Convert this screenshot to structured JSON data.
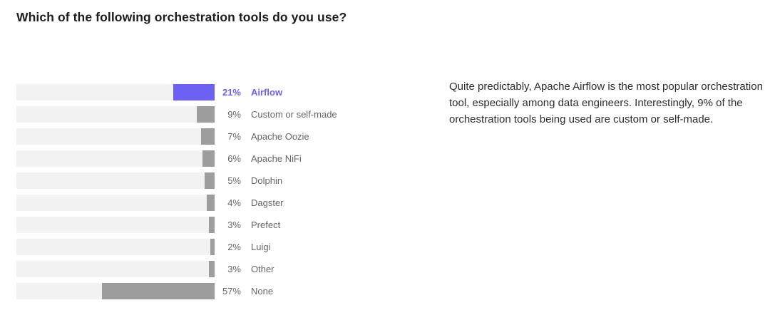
{
  "commentary": {
    "text": "Quite predictably, Apache Airflow is the most popular orchestration tool, especially among data engineers. Interestingly, 9% of the orchestration tools being used are custom or self-made."
  },
  "colors": {
    "accent": "#6C61F3",
    "bar_gray": "#9D9D9D",
    "track": "#F2F2F2",
    "title_text": "#1D1D1F",
    "body_text": "#2D2D2D",
    "label_text": "#666666",
    "background": "#FFFFFF"
  },
  "chart_data": {
    "type": "bar",
    "orientation": "horizontal",
    "bars_aligned": "right",
    "title": "Which of the following orchestration tools do you use?",
    "categories": [
      "Airflow",
      "Custom or self-made",
      "Apache Oozie",
      "Apache NiFi",
      "Dolphin",
      "Dagster",
      "Prefect",
      "Luigi",
      "Other",
      "None"
    ],
    "values": [
      21,
      9,
      7,
      6,
      5,
      4,
      3,
      2,
      3,
      57
    ],
    "value_labels": [
      "21%",
      "9%",
      "7%",
      "6%",
      "5%",
      "4%",
      "3%",
      "2%",
      "3%",
      "57%"
    ],
    "value_unit": "%",
    "xlim": [
      0,
      100
    ],
    "grid": false,
    "legend": false,
    "highlighted_category": "Airflow"
  }
}
